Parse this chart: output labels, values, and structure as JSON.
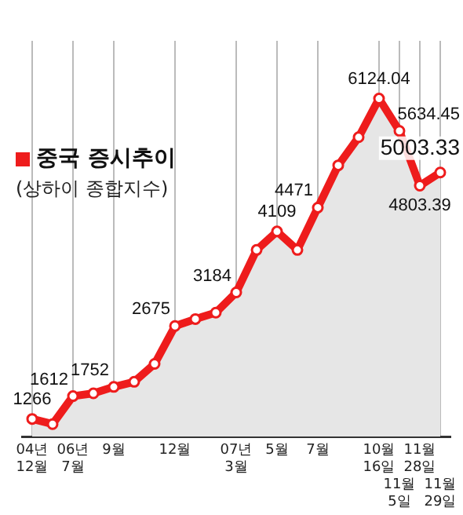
{
  "chart_data": {
    "type": "area",
    "title": "중국 증시추이",
    "subtitle": "(상하이 종합지수)",
    "categories": [
      "04년 12월",
      null,
      "06년 7월",
      null,
      "9월",
      null,
      null,
      "12월",
      null,
      null,
      "07년 3월",
      null,
      "5월",
      null,
      "7월",
      null,
      null,
      "10월 16일",
      "11월 5일",
      "11월 28일",
      "11월 29일"
    ],
    "series": [
      {
        "color": "#ee1c1c",
        "values": [
          1266,
          1188,
          1612,
          1654,
          1752,
          1829,
          2101,
          2675,
          2781,
          2878,
          3184,
          3829,
          4109,
          3829,
          4471,
          5111,
          5538,
          6124.04,
          5634.45,
          4803.39,
          5003.33
        ],
        "value_labels": [
          "1266",
          null,
          "1612",
          null,
          "1752",
          null,
          null,
          "2675",
          null,
          null,
          "3184",
          null,
          "4109",
          null,
          "4471",
          null,
          null,
          "6124.04",
          "5634.45",
          "4803.39",
          "5003.33"
        ]
      }
    ],
    "marker": "circle",
    "grid": "x",
    "tick_labels": "x"
  }
}
